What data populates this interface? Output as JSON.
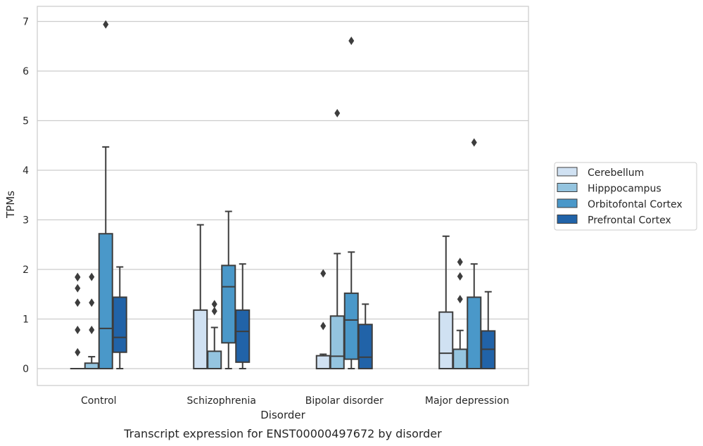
{
  "caption": "Transcript expression for ENST00000497672 by disorder",
  "chart_data": {
    "type": "box",
    "xlabel": "Disorder",
    "ylabel": "TPMs",
    "ylim": [
      -0.33,
      7.3
    ],
    "yticks": [
      0,
      1,
      2,
      3,
      4,
      5,
      6,
      7
    ],
    "grid": "horizontal",
    "legend_position": "right",
    "categories": [
      "Control",
      "Schizophrenia",
      "Bipolar disorder",
      "Major depression"
    ],
    "series": [
      {
        "name": "Cerebellum",
        "color": "#d0e1f2",
        "boxes": [
          {
            "whislo": 0,
            "q1": 0,
            "med": 0,
            "q3": 0,
            "whishi": 0,
            "fliers": [
              0.33,
              0.78,
              1.33,
              1.62,
              1.84,
              1.85
            ]
          },
          {
            "whislo": 0,
            "q1": 0,
            "med": 0,
            "q3": 1.18,
            "whishi": 2.9,
            "fliers": []
          },
          {
            "whislo": 0,
            "q1": 0,
            "med": 0,
            "q3": 0.26,
            "whishi": 0.29,
            "fliers": [
              0.86,
              1.92
            ]
          },
          {
            "whislo": 0,
            "q1": 0,
            "med": 0.31,
            "q3": 1.14,
            "whishi": 2.67,
            "fliers": []
          }
        ]
      },
      {
        "name": "Hipppocampus",
        "color": "#94c4df",
        "boxes": [
          {
            "whislo": 0,
            "q1": 0,
            "med": 0,
            "q3": 0.11,
            "whishi": 0.24,
            "fliers": [
              0.78,
              1.33,
              1.85
            ]
          },
          {
            "whislo": 0,
            "q1": 0,
            "med": 0,
            "q3": 0.35,
            "whishi": 0.83,
            "fliers": [
              1.16,
              1.3
            ]
          },
          {
            "whislo": 0,
            "q1": 0,
            "med": 0.25,
            "q3": 1.06,
            "whishi": 2.32,
            "fliers": [
              5.15
            ]
          },
          {
            "whislo": 0,
            "q1": 0,
            "med": 0,
            "q3": 0.39,
            "whishi": 0.77,
            "fliers": [
              1.4,
              1.86,
              2.15
            ]
          }
        ]
      },
      {
        "name": "Orbitofontal Cortex",
        "color": "#4a98c9",
        "boxes": [
          {
            "whislo": 0,
            "q1": 0,
            "med": 0.81,
            "q3": 2.72,
            "whishi": 4.47,
            "fliers": [
              6.94
            ]
          },
          {
            "whislo": 0,
            "q1": 0.52,
            "med": 1.65,
            "q3": 2.08,
            "whishi": 3.17,
            "fliers": []
          },
          {
            "whislo": 0,
            "q1": 0.19,
            "med": 0.98,
            "q3": 1.52,
            "whishi": 2.35,
            "fliers": [
              6.61
            ]
          },
          {
            "whislo": 0,
            "q1": 0,
            "med": 0,
            "q3": 1.44,
            "whishi": 2.11,
            "fliers": [
              4.56
            ]
          }
        ]
      },
      {
        "name": "Prefrontal Cortex",
        "color": "#2163a8",
        "boxes": [
          {
            "whislo": 0,
            "q1": 0.33,
            "med": 0.63,
            "q3": 1.44,
            "whishi": 2.05,
            "fliers": []
          },
          {
            "whislo": 0,
            "q1": 0.13,
            "med": 0.75,
            "q3": 1.18,
            "whishi": 2.11,
            "fliers": []
          },
          {
            "whislo": 0,
            "q1": 0,
            "med": 0.23,
            "q3": 0.89,
            "whishi": 1.3,
            "fliers": []
          },
          {
            "whislo": 0,
            "q1": 0,
            "med": 0.39,
            "q3": 0.76,
            "whishi": 1.55,
            "fliers": []
          }
        ]
      }
    ]
  }
}
